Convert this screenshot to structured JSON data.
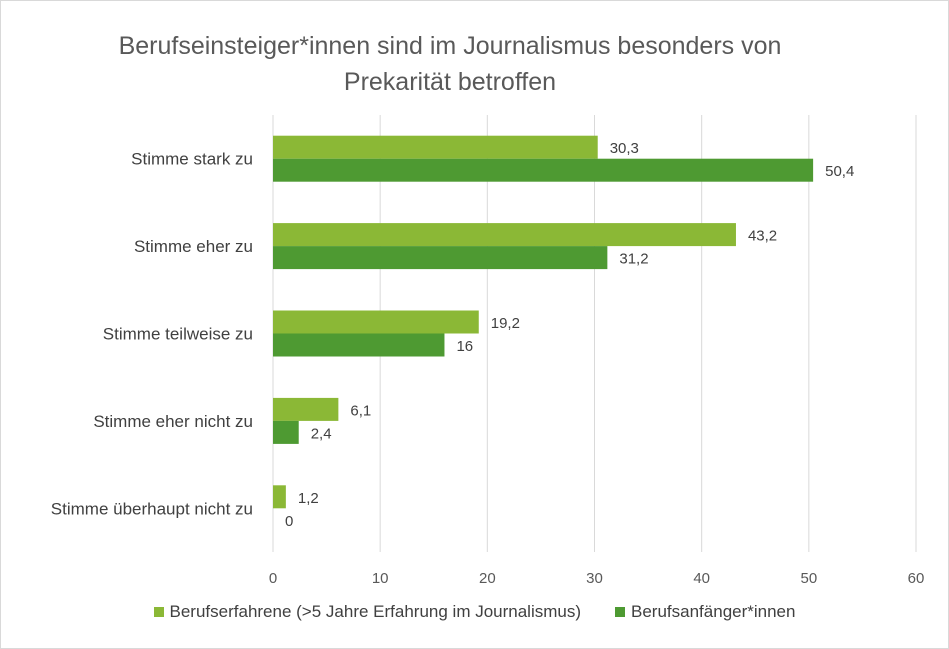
{
  "chart_data": {
    "type": "bar",
    "orientation": "horizontal",
    "title": "Berufseinsteiger*innen sind im Journalismus besonders von Prekarität betroffen",
    "categories": [
      "Stimme stark zu",
      "Stimme eher zu",
      "Stimme teilweise zu",
      "Stimme eher nicht zu",
      "Stimme überhaupt nicht zu"
    ],
    "series": [
      {
        "name": "Berufserfahrene (>5 Jahre Erfahrung im Journalismus)",
        "values": [
          30.3,
          43.2,
          19.2,
          6.1,
          1.2
        ],
        "labels": [
          "30,3",
          "43,2",
          "19,2",
          "6,1",
          "1,2"
        ],
        "color": "#8bb836"
      },
      {
        "name": "Berufsanfänger*innen",
        "values": [
          50.4,
          31.2,
          16,
          2.4,
          0
        ],
        "labels": [
          "50,4",
          "31,2",
          "16",
          "2,4",
          "0"
        ],
        "color": "#4e9a32"
      }
    ],
    "xlim": [
      0,
      60
    ],
    "xticks": [
      0,
      10,
      20,
      30,
      40,
      50,
      60
    ],
    "grid": true,
    "legend_position": "bottom"
  }
}
